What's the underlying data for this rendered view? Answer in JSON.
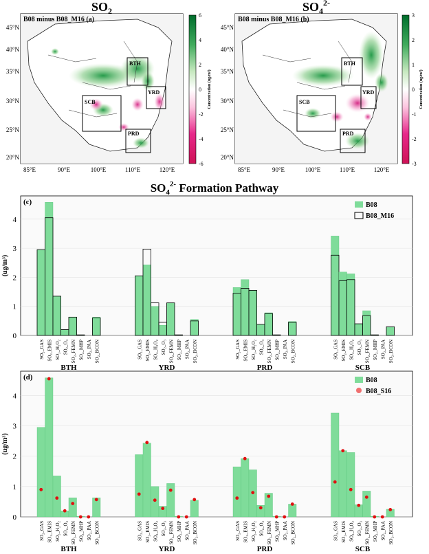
{
  "top_maps": {
    "left": {
      "title_main": "SO",
      "title_sub": "2",
      "title_sup": "",
      "panel_label": "B08 minus B08_M16 (a)",
      "colorbar_ticks": [
        "6",
        "4",
        "2",
        "0",
        "-2",
        "-4",
        "-6"
      ],
      "colorbar_label": "Concentration (ug/m³)",
      "lat_ticks": [
        "45°N",
        "40°N",
        "35°N",
        "30°N",
        "25°N",
        "20°N"
      ],
      "lon_ticks": [
        "85°E",
        "90°E",
        "100°E",
        "110°E",
        "120°E"
      ],
      "regions": [
        "BTH",
        "YRD",
        "SCB",
        "PRD"
      ]
    },
    "right": {
      "title_main": "SO",
      "title_sub": "4",
      "title_sup": "2-",
      "panel_label": "B08 minus B08_M16 (b)",
      "colorbar_ticks": [
        "3",
        "2",
        "1",
        "0",
        "-1",
        "-2",
        "-3"
      ],
      "colorbar_label": "Concentration (ug/m³)",
      "lat_ticks": [
        "45°N",
        "40°N",
        "35°N",
        "30°N",
        "25°N",
        "20°N"
      ],
      "lon_ticks": [
        "85°E",
        "90°E",
        "100°E",
        "110°E",
        "120°E"
      ],
      "regions": [
        "BTH",
        "YRD",
        "SCB",
        "PRD"
      ]
    },
    "colors": {
      "positive": "#0b7a3a",
      "negative": "#d0157a",
      "neutral": "#ffffff"
    }
  },
  "section_title": {
    "main": "SO",
    "sub": "4",
    "sup": "2-",
    "rest": " Formation Pathway"
  },
  "chart_data": [
    {
      "type": "bar",
      "panel": "(c)",
      "ylabel": "(ug/m³)",
      "ylim": [
        0,
        4.8
      ],
      "yticks": [
        0,
        1,
        2,
        3,
        4
      ],
      "groups": [
        "BTH",
        "YRD",
        "PRD",
        "SCB"
      ],
      "categories": [
        "SO₂_GAS",
        "SO₂_EMIS",
        "SO₂_H₂O₂",
        "SO₂_O₃",
        "SO₂_FEMN",
        "SO₂_MHP",
        "SO₂_PAA",
        "SO₂_BCON"
      ],
      "legend": [
        "B08",
        "B08_M16"
      ],
      "legend_position": "top-right",
      "colors": {
        "B08": "#7fdc9a",
        "B08_M16": "#000000"
      },
      "series": [
        {
          "name": "B08",
          "values": [
            [
              2.95,
              4.58,
              1.35,
              0.2,
              0.63,
              0.02,
              0.0,
              0.63
            ],
            [
              2.05,
              2.43,
              1.0,
              0.35,
              1.12,
              0.02,
              0.0,
              0.55
            ],
            [
              1.65,
              1.92,
              1.55,
              0.38,
              0.78,
              0.02,
              0.0,
              0.48
            ],
            [
              3.42,
              2.18,
              2.12,
              0.4,
              0.85,
              0.02,
              0.0,
              0.28
            ]
          ]
        },
        {
          "name": "B08_M16",
          "values": [
            [
              2.95,
              4.05,
              1.35,
              0.2,
              0.63,
              0.02,
              0.0,
              0.6
            ],
            [
              2.05,
              2.97,
              1.12,
              0.45,
              1.12,
              0.02,
              0.0,
              0.5
            ],
            [
              1.45,
              1.62,
              1.55,
              0.38,
              0.75,
              0.02,
              0.0,
              0.45
            ],
            [
              2.76,
              1.88,
              1.92,
              0.4,
              0.68,
              0.02,
              0.0,
              0.3
            ]
          ]
        }
      ]
    },
    {
      "type": "bar",
      "panel": "(d)",
      "ylabel": "(ug/m³)",
      "ylim": [
        0,
        4.8
      ],
      "yticks": [
        0,
        1,
        2,
        3,
        4
      ],
      "groups": [
        "BTH",
        "YRD",
        "PRD",
        "SCB"
      ],
      "categories": [
        "SO₂_GAS",
        "SO₂_EMIS",
        "SO₂_H₂O₂",
        "SO₂_O₃",
        "SO₂_FEMN",
        "SO₂_MHP",
        "SO₂_PAA",
        "SO₂_BCON"
      ],
      "legend": [
        "B08",
        "B08_S16"
      ],
      "legend_position": "top-right",
      "colors": {
        "B08": "#7fdc9a",
        "B08_S16": "#f07070",
        "point": "#e01010"
      },
      "series": [
        {
          "name": "B08",
          "values": [
            [
              2.95,
              4.58,
              1.35,
              0.2,
              0.63,
              0.02,
              0.0,
              0.63
            ],
            [
              2.05,
              2.43,
              1.0,
              0.35,
              1.1,
              0.02,
              0.0,
              0.55
            ],
            [
              1.65,
              1.92,
              1.55,
              0.38,
              0.78,
              0.02,
              0.0,
              0.42
            ],
            [
              3.42,
              2.18,
              2.12,
              0.4,
              0.85,
              0.02,
              0.0,
              0.25
            ]
          ]
        },
        {
          "name": "B08_S16",
          "values": [
            [
              0.9,
              4.55,
              0.62,
              0.2,
              0.44,
              0.0,
              0.0,
              0.57
            ],
            [
              0.75,
              2.45,
              0.55,
              0.28,
              0.88,
              0.0,
              0.0,
              0.57
            ],
            [
              0.62,
              1.92,
              0.8,
              0.3,
              0.68,
              0.0,
              0.0,
              0.42
            ],
            [
              1.15,
              2.18,
              0.9,
              0.38,
              0.65,
              0.0,
              0.0,
              0.24
            ]
          ]
        }
      ]
    }
  ]
}
